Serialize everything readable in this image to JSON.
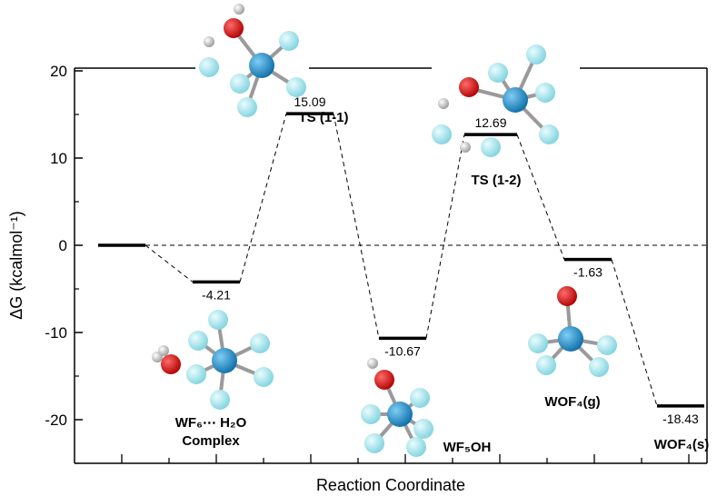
{
  "chart_data": {
    "type": "line",
    "xlabel": "Reaction Coordinate",
    "ylabel": "ΔG (kcalmol⁻¹)",
    "ylim": [
      -25,
      25
    ],
    "yticks": [
      20,
      10,
      0,
      -10,
      -20
    ],
    "grid": false,
    "states": [
      {
        "index": 0,
        "value": 0,
        "value_label": ""
      },
      {
        "index": 1,
        "value": -4.21,
        "value_label": "-4.21"
      },
      {
        "index": 2,
        "value": 15.09,
        "value_label": "15.09"
      },
      {
        "index": 3,
        "value": -10.67,
        "value_label": "-10.67"
      },
      {
        "index": 4,
        "value": 12.69,
        "value_label": "12.69"
      },
      {
        "index": 5,
        "value": -1.63,
        "value_label": "-1.63"
      },
      {
        "index": 6,
        "value": -18.43,
        "value_label": "-18.43"
      }
    ],
    "species_labels": [
      {
        "text": "TS (1-1)"
      },
      {
        "text": "TS (1-2)"
      },
      {
        "text": "WF₆⋯ H₂O",
        "text2": "Complex"
      },
      {
        "text": "WF₅OH"
      },
      {
        "text": "WOF₄(g)"
      },
      {
        "text": "WOF₄(s)"
      }
    ],
    "colors": {
      "fluorine_atom": "#a9e6ee",
      "tungsten_atom": "#1e8fd0",
      "oxygen_atom": "#e00000",
      "hydrogen_atom": "#e6e6e6",
      "bond": "#9a9a9a"
    }
  }
}
